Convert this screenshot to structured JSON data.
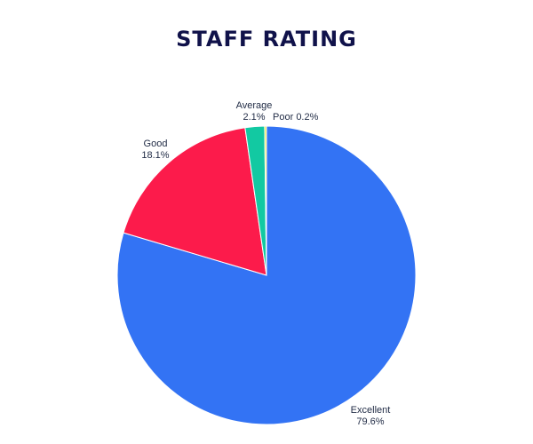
{
  "chart_data": {
    "type": "pie",
    "title": "STAFF RATING",
    "slices": [
      {
        "label": "Excellent",
        "value": 79.6,
        "display": "79.6%",
        "color": "#3373f4"
      },
      {
        "label": "Good",
        "value": 18.1,
        "display": "18.1%",
        "color": "#fc1b4b"
      },
      {
        "label": "Average",
        "value": 2.1,
        "display": "2.1%",
        "color": "#12c9a2"
      },
      {
        "label": "Poor",
        "value": 0.2,
        "display": "0.2%",
        "color": "#f3e629"
      }
    ],
    "start": "12 o'clock",
    "direction": "clockwise",
    "legend": "none"
  }
}
